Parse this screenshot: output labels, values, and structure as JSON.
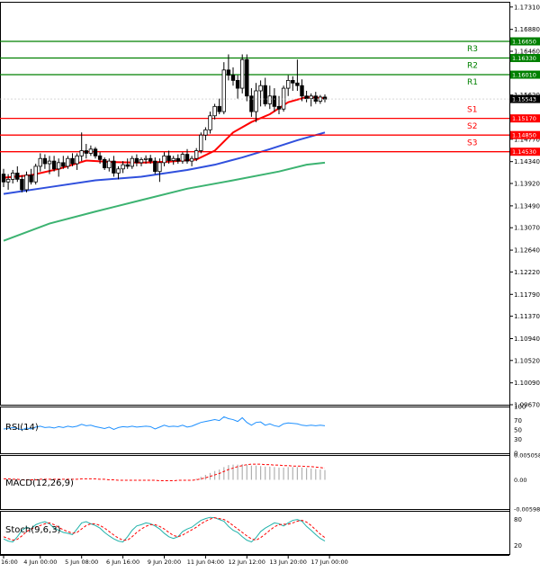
{
  "chart_data": {
    "type": "candlestick",
    "instrument_note": "",
    "x_tick_labels": [
      "16:00",
      "4 Jun 00:00",
      "5 Jun 08:00",
      "6 Jun 16:00",
      "9 Jun 20:00",
      "11 Jun 04:00",
      "12 Jun 12:00",
      "13 Jun 20:00",
      "17 Jun 00:00"
    ],
    "x_tick_index": [
      0,
      8,
      17,
      26,
      35,
      44,
      53,
      62,
      71
    ],
    "price_axis": {
      "ylim": [
        1.0967,
        1.1741
      ],
      "ticks": [
        "1.17310",
        "1.16880",
        "1.16460",
        "1.16040",
        "1.15620",
        "1.15200",
        "1.14770",
        "1.14340",
        "1.13920",
        "1.13490",
        "1.13070",
        "1.12640",
        "1.12220",
        "1.11790",
        "1.11370",
        "1.10940",
        "1.10520",
        "1.10090",
        "1.09670"
      ]
    },
    "levels": [
      {
        "name": "R3",
        "value": 1.1665,
        "label": "1.16650",
        "color": "#008000"
      },
      {
        "name": "R2",
        "value": 1.1633,
        "label": "1.16330",
        "color": "#008000"
      },
      {
        "name": "R1",
        "value": 1.1601,
        "label": "1.16010",
        "color": "#008000"
      },
      {
        "name": "S1",
        "value": 1.1517,
        "label": "1.15170",
        "color": "#ff0000"
      },
      {
        "name": "S2",
        "value": 1.1485,
        "label": "1.14850",
        "color": "#ff0000"
      },
      {
        "name": "S3",
        "value": 1.1453,
        "label": "1.14530",
        "color": "#ff0000"
      }
    ],
    "current_price": {
      "value": 1.15543,
      "label": "1.15543"
    },
    "candles": [
      [
        1.141,
        1.142,
        1.1385,
        1.1395
      ],
      [
        1.1395,
        1.141,
        1.138,
        1.14
      ],
      [
        1.14,
        1.1418,
        1.1392,
        1.1412
      ],
      [
        1.1412,
        1.1425,
        1.1395,
        1.14
      ],
      [
        1.14,
        1.1408,
        1.1375,
        1.138
      ],
      [
        1.138,
        1.1415,
        1.1375,
        1.1408
      ],
      [
        1.1408,
        1.142,
        1.139,
        1.1395
      ],
      [
        1.1395,
        1.143,
        1.139,
        1.1425
      ],
      [
        1.1425,
        1.145,
        1.1415,
        1.144
      ],
      [
        1.144,
        1.1448,
        1.142,
        1.143
      ],
      [
        1.143,
        1.1445,
        1.141,
        1.1435
      ],
      [
        1.1435,
        1.1445,
        1.1415,
        1.142
      ],
      [
        1.142,
        1.144,
        1.1405,
        1.1432
      ],
      [
        1.1432,
        1.1445,
        1.142,
        1.1425
      ],
      [
        1.1425,
        1.1445,
        1.142,
        1.144
      ],
      [
        1.144,
        1.145,
        1.1425,
        1.143
      ],
      [
        1.143,
        1.145,
        1.1418,
        1.1445
      ],
      [
        1.1445,
        1.149,
        1.1435,
        1.1455
      ],
      [
        1.1455,
        1.1468,
        1.144,
        1.145
      ],
      [
        1.145,
        1.1465,
        1.1445,
        1.1458
      ],
      [
        1.1458,
        1.1462,
        1.144,
        1.1445
      ],
      [
        1.1445,
        1.1452,
        1.143,
        1.1438
      ],
      [
        1.1438,
        1.1442,
        1.1418,
        1.1422
      ],
      [
        1.1422,
        1.144,
        1.1415,
        1.1435
      ],
      [
        1.1435,
        1.1445,
        1.1405,
        1.1412
      ],
      [
        1.1412,
        1.1425,
        1.14,
        1.142
      ],
      [
        1.142,
        1.1435,
        1.1412,
        1.1428
      ],
      [
        1.1428,
        1.144,
        1.142,
        1.1425
      ],
      [
        1.1425,
        1.1445,
        1.142,
        1.144
      ],
      [
        1.144,
        1.1448,
        1.1425,
        1.1432
      ],
      [
        1.1432,
        1.1442,
        1.1425,
        1.1438
      ],
      [
        1.1438,
        1.1446,
        1.143,
        1.144
      ],
      [
        1.144,
        1.1447,
        1.143,
        1.1435
      ],
      [
        1.1435,
        1.1442,
        1.141,
        1.1415
      ],
      [
        1.1415,
        1.144,
        1.1395,
        1.1432
      ],
      [
        1.1432,
        1.1452,
        1.1425,
        1.1445
      ],
      [
        1.1445,
        1.1455,
        1.143,
        1.1436
      ],
      [
        1.1436,
        1.1445,
        1.1428,
        1.144
      ],
      [
        1.144,
        1.1448,
        1.143,
        1.1435
      ],
      [
        1.1435,
        1.1452,
        1.143,
        1.1448
      ],
      [
        1.1448,
        1.1458,
        1.143,
        1.1435
      ],
      [
        1.1435,
        1.1445,
        1.1425,
        1.144
      ],
      [
        1.144,
        1.146,
        1.1435,
        1.1455
      ],
      [
        1.1455,
        1.149,
        1.145,
        1.1485
      ],
      [
        1.1485,
        1.15,
        1.1475,
        1.1495
      ],
      [
        1.1495,
        1.153,
        1.1488,
        1.1522
      ],
      [
        1.1522,
        1.1545,
        1.1515,
        1.154
      ],
      [
        1.154,
        1.1555,
        1.1525,
        1.153
      ],
      [
        1.153,
        1.1625,
        1.1525,
        1.161
      ],
      [
        1.161,
        1.164,
        1.159,
        1.16
      ],
      [
        1.16,
        1.1615,
        1.158,
        1.159
      ],
      [
        1.159,
        1.16,
        1.1555,
        1.1575
      ],
      [
        1.1575,
        1.164,
        1.1565,
        1.163
      ],
      [
        1.163,
        1.164,
        1.155,
        1.156
      ],
      [
        1.156,
        1.1575,
        1.152,
        1.153
      ],
      [
        1.153,
        1.1585,
        1.151,
        1.157
      ],
      [
        1.157,
        1.159,
        1.154,
        1.158
      ],
      [
        1.158,
        1.1595,
        1.154,
        1.1545
      ],
      [
        1.1545,
        1.158,
        1.1535,
        1.156
      ],
      [
        1.156,
        1.1575,
        1.153,
        1.154
      ],
      [
        1.154,
        1.156,
        1.1525,
        1.1535
      ],
      [
        1.1535,
        1.158,
        1.153,
        1.1575
      ],
      [
        1.1575,
        1.16,
        1.156,
        1.159
      ],
      [
        1.159,
        1.1598,
        1.157,
        1.1585
      ],
      [
        1.1585,
        1.163,
        1.157,
        1.158
      ],
      [
        1.158,
        1.1592,
        1.155,
        1.156
      ],
      [
        1.156,
        1.157,
        1.1548,
        1.1555
      ],
      [
        1.1555,
        1.1565,
        1.154,
        1.156
      ],
      [
        1.156,
        1.1568,
        1.1545,
        1.155
      ],
      [
        1.155,
        1.1562,
        1.1545,
        1.1558
      ],
      [
        1.1558,
        1.1563,
        1.1548,
        1.1554
      ]
    ],
    "moving_averages": [
      {
        "color": "#ff0000",
        "points": [
          [
            0,
            1.1403
          ],
          [
            6,
            1.1408
          ],
          [
            12,
            1.142
          ],
          [
            18,
            1.1436
          ],
          [
            24,
            1.1433
          ],
          [
            30,
            1.1432
          ],
          [
            36,
            1.1434
          ],
          [
            42,
            1.1438
          ],
          [
            46,
            1.1455
          ],
          [
            50,
            1.149
          ],
          [
            54,
            1.151
          ],
          [
            58,
            1.1525
          ],
          [
            62,
            1.1548
          ],
          [
            66,
            1.1558
          ],
          [
            70,
            1.1556
          ]
        ]
      },
      {
        "color": "#3050dd",
        "points": [
          [
            0,
            1.1372
          ],
          [
            10,
            1.1385
          ],
          [
            20,
            1.1398
          ],
          [
            30,
            1.1405
          ],
          [
            40,
            1.1418
          ],
          [
            46,
            1.1428
          ],
          [
            52,
            1.1442
          ],
          [
            58,
            1.1458
          ],
          [
            64,
            1.1475
          ],
          [
            70,
            1.149
          ]
        ]
      },
      {
        "color": "#3cb371",
        "points": [
          [
            0,
            1.1282
          ],
          [
            10,
            1.1315
          ],
          [
            20,
            1.1338
          ],
          [
            30,
            1.136
          ],
          [
            40,
            1.1382
          ],
          [
            50,
            1.1398
          ],
          [
            60,
            1.1415
          ],
          [
            66,
            1.1428
          ],
          [
            70,
            1.1432
          ]
        ]
      }
    ],
    "rsi": {
      "label": "RSI(14)",
      "ticks": [
        "100",
        "70",
        "50",
        "30",
        "0"
      ],
      "values": [
        52,
        53,
        55,
        53,
        50,
        54,
        52,
        56,
        58,
        55,
        56,
        54,
        57,
        55,
        58,
        56,
        58,
        62,
        59,
        60,
        57,
        55,
        53,
        56,
        51,
        55,
        57,
        56,
        58,
        56,
        57,
        58,
        57,
        52,
        56,
        60,
        57,
        58,
        57,
        60,
        56,
        58,
        62,
        66,
        68,
        70,
        72,
        70,
        78,
        74,
        72,
        68,
        76,
        66,
        60,
        66,
        67,
        60,
        63,
        59,
        57,
        63,
        65,
        64,
        63,
        60,
        59,
        60,
        59,
        60,
        59
      ]
    },
    "macd": {
      "label": "MACD(12,26,9)",
      "ticks": [
        "0.005058",
        "0.00",
        "-0.005988"
      ],
      "ylim": [
        -0.005988,
        0.005058
      ],
      "histogram": [
        0,
        0,
        0,
        0,
        0,
        0,
        0,
        0,
        0,
        0,
        0,
        0,
        0,
        0,
        0,
        0,
        0,
        0,
        0,
        0,
        0,
        0,
        0,
        0,
        0,
        0,
        0,
        0,
        0,
        0,
        0,
        0,
        0,
        0,
        0,
        0,
        0,
        0,
        0,
        0,
        0,
        0,
        0.0002,
        0.0006,
        0.001,
        0.0014,
        0.0018,
        0.0021,
        0.0026,
        0.003,
        0.0031,
        0.0031,
        0.0032,
        0.0031,
        0.0029,
        0.0029,
        0.0028,
        0.0027,
        0.0027,
        0.0026,
        0.0025,
        0.0025,
        0.0026,
        0.0026,
        0.0026,
        0.0025,
        0.0024,
        0.0023,
        0.0022,
        0.0021,
        0.002
      ],
      "signal": [
        0.0002,
        0.0002,
        0.0001,
        0.0001,
        0.0,
        0.0,
        0.0,
        0.0,
        0.0001,
        0.0001,
        0.0001,
        0.0001,
        0.0001,
        0.0001,
        0.0001,
        0.0001,
        0.0001,
        0.0002,
        0.0002,
        0.0002,
        0.0002,
        0.0001,
        0.0001,
        0.0,
        0.0,
        -0.0001,
        -0.0001,
        -0.0001,
        -0.0001,
        -0.0001,
        -0.0001,
        -0.0001,
        -0.0001,
        -0.0001,
        -0.0002,
        -0.0002,
        -0.0002,
        -0.0002,
        -0.0001,
        -0.0001,
        -0.0001,
        -0.0001,
        0.0,
        0.0002,
        0.0004,
        0.0007,
        0.001,
        0.0013,
        0.0017,
        0.0021,
        0.0024,
        0.0027,
        0.0029,
        0.0031,
        0.0032,
        0.0032,
        0.0032,
        0.0031,
        0.0031,
        0.003,
        0.003,
        0.0029,
        0.0029,
        0.0028,
        0.0028,
        0.0028,
        0.0027,
        0.0027,
        0.0026,
        0.0025,
        0.0024
      ]
    },
    "stochastic": {
      "label": "Stoch(9,6,3)",
      "ticks": [
        "80",
        "20"
      ],
      "main": [
        35,
        30,
        28,
        40,
        55,
        62,
        58,
        68,
        72,
        75,
        70,
        60,
        55,
        50,
        48,
        45,
        58,
        72,
        75,
        70,
        66,
        60,
        50,
        42,
        35,
        30,
        28,
        40,
        55,
        65,
        68,
        72,
        70,
        65,
        58,
        48,
        40,
        36,
        40,
        52,
        58,
        62,
        70,
        78,
        82,
        85,
        84,
        80,
        76,
        64,
        55,
        50,
        40,
        32,
        28,
        38,
        52,
        60,
        66,
        72,
        70,
        65,
        72,
        78,
        80,
        76,
        64,
        55,
        45,
        36,
        30
      ],
      "signal": [
        40,
        36,
        32,
        34,
        42,
        52,
        58,
        62,
        66,
        70,
        72,
        68,
        62,
        56,
        52,
        48,
        50,
        58,
        66,
        70,
        70,
        66,
        60,
        52,
        44,
        37,
        32,
        32,
        40,
        50,
        58,
        64,
        68,
        68,
        64,
        58,
        50,
        43,
        40,
        44,
        50,
        56,
        62,
        70,
        76,
        81,
        84,
        82,
        80,
        74,
        66,
        58,
        50,
        42,
        35,
        32,
        38,
        46,
        55,
        63,
        68,
        69,
        69,
        72,
        76,
        78,
        74,
        66,
        56,
        46,
        38
      ]
    }
  }
}
